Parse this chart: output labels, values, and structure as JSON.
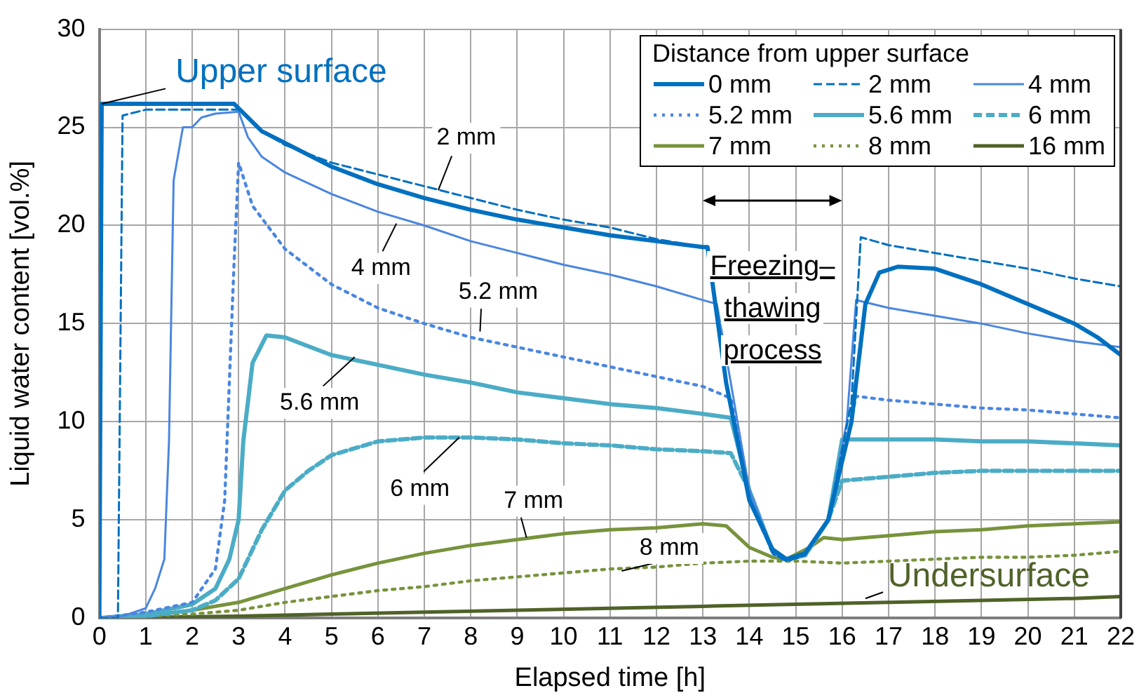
{
  "chart_data": {
    "type": "line",
    "xlabel": "Elapsed time [h]",
    "ylabel": "Liquid water content [vol.%]",
    "legend_title": "Distance from upper surface",
    "legend": "top right",
    "grid": true,
    "marker": "none",
    "xlim": [
      0,
      22
    ],
    "xticks": [
      0,
      1,
      2,
      3,
      4,
      5,
      6,
      7,
      8,
      9,
      10,
      11,
      12,
      13,
      14,
      15,
      16,
      17,
      18,
      19,
      20,
      21,
      22
    ],
    "ylim": [
      0,
      30
    ],
    "yticks": [
      0,
      5,
      10,
      15,
      20,
      25,
      30
    ],
    "series": [
      {
        "name": "0 mm",
        "color": "#0070c0",
        "line_style": "solid",
        "x": [
          0,
          0.05,
          2.9,
          3.5,
          4,
          5,
          6,
          7,
          8,
          9,
          10,
          11,
          12,
          13,
          13.1,
          13.5,
          14,
          14.5,
          14.8,
          15.2,
          15.7,
          16.2,
          16.5,
          16.8,
          17.2,
          18,
          19,
          20,
          21,
          21.5,
          22
        ],
        "values": [
          0,
          26.2,
          26.2,
          24.8,
          24.2,
          23,
          22.1,
          21.4,
          20.8,
          20.3,
          19.9,
          19.5,
          19.2,
          18.9,
          18.9,
          12,
          6,
          3.5,
          3,
          3.3,
          5,
          10,
          16,
          17.6,
          17.9,
          17.8,
          17,
          16,
          15,
          14.3,
          13.4
        ]
      },
      {
        "name": "2 mm",
        "color": "#0070c0",
        "line_style": "dashed",
        "x": [
          0,
          0.4,
          0.5,
          1,
          3,
          3.5,
          4,
          5,
          6,
          7,
          8,
          9,
          10,
          11,
          12,
          13,
          13.1,
          13.5,
          14,
          14.5,
          14.8,
          15.2,
          15.7,
          16.2,
          16.4,
          17,
          18,
          19,
          20,
          21,
          22
        ],
        "values": [
          0,
          0,
          25.6,
          25.9,
          25.9,
          24.8,
          24.1,
          23.2,
          22.6,
          22,
          21.4,
          20.8,
          20.3,
          19.9,
          19.3,
          18.9,
          18.8,
          12,
          6,
          3.3,
          2.9,
          3.2,
          5,
          11,
          19.4,
          19,
          18.6,
          18.2,
          17.8,
          17.3,
          16.9
        ]
      },
      {
        "name": "4 mm",
        "color": "#4a86e0",
        "line_style": "solid",
        "x": [
          0,
          0.5,
          1,
          1.2,
          1.4,
          1.5,
          1.6,
          1.8,
          2,
          2.2,
          2.5,
          3,
          3.2,
          3.5,
          4,
          5,
          6,
          7,
          8,
          9,
          10,
          11,
          12,
          13,
          13.3,
          13.6,
          14,
          14.5,
          14.8,
          15.2,
          15.7,
          16.1,
          16.3,
          17,
          18,
          19,
          20,
          21,
          22
        ],
        "values": [
          0,
          0.1,
          0.5,
          1.5,
          3,
          9,
          22.3,
          25,
          25,
          25.5,
          25.7,
          25.8,
          24.5,
          23.5,
          22.7,
          21.6,
          20.7,
          20,
          19.2,
          18.6,
          18,
          17.5,
          16.9,
          16.2,
          16,
          12,
          6.5,
          3.5,
          3,
          3.3,
          5,
          10,
          16.2,
          15.8,
          15.4,
          15,
          14.5,
          14.1,
          13.8
        ]
      },
      {
        "name": "5.2 mm",
        "color": "#4a86e0",
        "line_style": "dotted",
        "x": [
          0,
          1,
          2,
          2.5,
          2.7,
          2.8,
          2.9,
          3,
          3.3,
          4,
          5,
          6,
          7,
          8,
          9,
          10,
          11,
          12,
          13,
          13.6,
          14,
          14.5,
          14.8,
          15.2,
          15.7,
          16.1,
          16.3,
          17,
          18,
          19,
          20,
          21,
          22
        ],
        "values": [
          0,
          0.3,
          0.8,
          2.5,
          6,
          12,
          18,
          23.2,
          21,
          18.8,
          17,
          15.8,
          15,
          14.3,
          13.8,
          13.3,
          12.8,
          12.3,
          11.8,
          11.2,
          6.5,
          3.3,
          2.9,
          3.2,
          5,
          9,
          11.3,
          11.1,
          10.9,
          10.7,
          10.6,
          10.4,
          10.2
        ]
      },
      {
        "name": "5.6 mm",
        "color": "#4bacc6",
        "line_style": "solid",
        "x": [
          0,
          1,
          2,
          2.5,
          2.8,
          3,
          3.1,
          3.3,
          3.6,
          4,
          5,
          6,
          7,
          8,
          9,
          10,
          11,
          12,
          13,
          13.6,
          14,
          14.5,
          14.8,
          15.2,
          15.7,
          16,
          17,
          18,
          19,
          20,
          21,
          22
        ],
        "values": [
          0,
          0.2,
          0.7,
          1.5,
          3,
          5,
          9,
          13,
          14.4,
          14.3,
          13.4,
          12.9,
          12.4,
          12,
          11.5,
          11.2,
          10.9,
          10.7,
          10.4,
          10.2,
          6.5,
          3.4,
          3,
          3.2,
          5,
          9.1,
          9.1,
          9.1,
          9,
          9,
          8.9,
          8.8
        ]
      },
      {
        "name": "6 mm",
        "color": "#4bacc6",
        "line_style": "dashed",
        "x": [
          0,
          1,
          2,
          2.5,
          3,
          3.5,
          4,
          4.5,
          5,
          6,
          7,
          8,
          9,
          10,
          11,
          12,
          13,
          13.6,
          14,
          14.5,
          14.8,
          15.2,
          15.7,
          16,
          17,
          18,
          19,
          20,
          21,
          22
        ],
        "values": [
          0,
          0.1,
          0.4,
          0.9,
          2,
          4.5,
          6.5,
          7.5,
          8.3,
          9,
          9.2,
          9.2,
          9.1,
          8.9,
          8.8,
          8.6,
          8.5,
          8.4,
          6.5,
          3.4,
          3,
          3.2,
          5,
          7,
          7.2,
          7.4,
          7.5,
          7.5,
          7.5,
          7.5
        ]
      },
      {
        "name": "7 mm",
        "color": "#77933c",
        "line_style": "solid",
        "x": [
          0,
          1,
          2,
          3,
          4,
          5,
          6,
          7,
          8,
          9,
          10,
          11,
          12,
          13,
          13.5,
          14,
          14.5,
          14.8,
          15.3,
          15.6,
          16,
          17,
          18,
          19,
          20,
          21,
          22
        ],
        "values": [
          0,
          0.1,
          0.4,
          0.8,
          1.5,
          2.2,
          2.8,
          3.3,
          3.7,
          4,
          4.3,
          4.5,
          4.6,
          4.8,
          4.7,
          3.6,
          3.1,
          3,
          3.6,
          4.1,
          4,
          4.2,
          4.4,
          4.5,
          4.7,
          4.8,
          4.9
        ]
      },
      {
        "name": "8 mm",
        "color": "#77933c",
        "line_style": "dotted",
        "x": [
          0,
          2,
          3,
          4,
          5,
          6,
          7,
          8,
          9,
          10,
          11,
          12,
          13,
          14,
          15,
          16,
          17,
          18,
          19,
          20,
          21,
          22
        ],
        "values": [
          0,
          0.2,
          0.4,
          0.8,
          1.1,
          1.4,
          1.6,
          1.9,
          2.1,
          2.3,
          2.5,
          2.6,
          2.8,
          2.9,
          2.9,
          2.8,
          2.9,
          3,
          3.1,
          3.1,
          3.2,
          3.4
        ]
      },
      {
        "name": "16 mm",
        "color": "#4f6228",
        "line_style": "solid",
        "x": [
          0,
          3,
          5,
          7,
          9,
          11,
          13,
          15,
          17,
          19,
          21,
          22
        ],
        "values": [
          0,
          0.1,
          0.2,
          0.3,
          0.4,
          0.5,
          0.6,
          0.7,
          0.8,
          0.9,
          1,
          1.1
        ]
      }
    ],
    "annotations": [
      {
        "text": "Upper surface",
        "x": 0.05,
        "y": 26.2
      },
      {
        "text": "2 mm",
        "x": 7.3,
        "y": 21.8
      },
      {
        "text": "4 mm",
        "x": 6.4,
        "y": 20.1
      },
      {
        "text": "5.2 mm",
        "x": 8.2,
        "y": 14.6
      },
      {
        "text": "5.6 mm",
        "x": 5.5,
        "y": 13.3
      },
      {
        "text": "6 mm",
        "x": 7.75,
        "y": 9.2
      },
      {
        "text": "7 mm",
        "x": 9.2,
        "y": 4.1
      },
      {
        "text": "8 mm",
        "x": 11.25,
        "y": 2.4
      },
      {
        "text": "Undersurface",
        "x": 16.5,
        "y": 1.0
      },
      "Freezing–thawing process"
    ]
  }
}
